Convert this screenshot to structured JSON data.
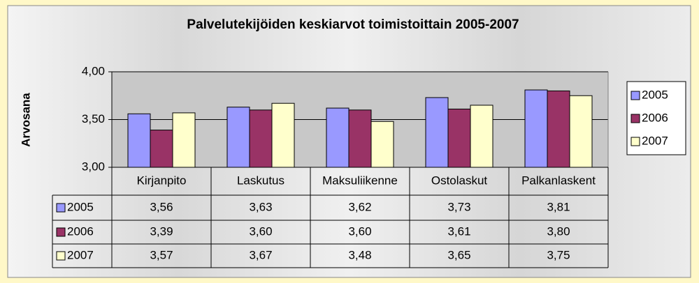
{
  "chart_data": {
    "type": "bar",
    "title": "Palvelutekijöiden keskiarvot toimistoittain 2005-2007",
    "y_label": "Arvosana",
    "categories": [
      "Kirjanpito",
      "Laskutus",
      "Maksuliikenne",
      "Ostolaskut",
      "Palkanlaskent"
    ],
    "series": [
      {
        "name": "2005",
        "color": "#9999ff",
        "values": [
          3.56,
          3.63,
          3.62,
          3.73,
          3.81
        ],
        "value_labels": [
          "3,56",
          "3,63",
          "3,62",
          "3,73",
          "3,81"
        ]
      },
      {
        "name": "2006",
        "color": "#993366",
        "values": [
          3.39,
          3.6,
          3.6,
          3.61,
          3.8
        ],
        "value_labels": [
          "3,39",
          "3,60",
          "3,60",
          "3,61",
          "3,80"
        ]
      },
      {
        "name": "2007",
        "color": "#ffffcc",
        "values": [
          3.57,
          3.67,
          3.48,
          3.65,
          3.75
        ],
        "value_labels": [
          "3,57",
          "3,67",
          "3,48",
          "3,65",
          "3,75"
        ]
      }
    ],
    "ylim": [
      3,
      4
    ],
    "yticks": [
      {
        "value": 3,
        "label": "3,00"
      },
      {
        "value": 3.5,
        "label": "3,50"
      },
      {
        "value": 4,
        "label": "4,00"
      }
    ],
    "grid": true,
    "legend": "right"
  }
}
